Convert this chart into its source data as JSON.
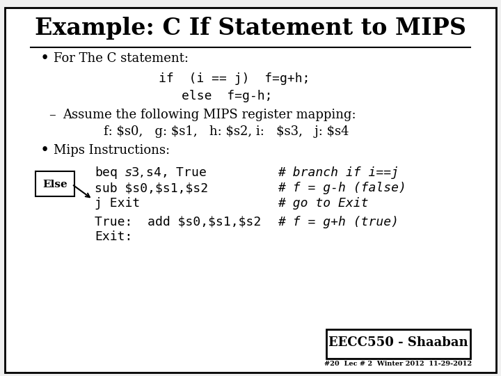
{
  "title": "Example: C If Statement to MIPS",
  "bg_color": "#f0f0f0",
  "slide_bg": "#ffffff",
  "border_color": "#000000",
  "title_fontsize": 24,
  "body_fontsize": 13,
  "code_fontsize": 13,
  "footer_text": "EECC550 - Shaaban",
  "footer_sub": "#20  Lec # 2  Winter 2012  11-29-2012",
  "bullet1": "For The C statement:",
  "code_line1": "if  (i == j)  f=g+h;",
  "code_line2": "else  f=g-h;",
  "sub_bullet": "Assume the following MIPS register mapping:",
  "mapping_line": "f: $s0,   g: $s1,   h: $s2, i:   $s3,   j: $s4",
  "bullet2": "Mips Instructions:",
  "instr1": "beq $s3,$s4, True",
  "instr2": "sub $s0,$s1,$s2",
  "instr3": "j Exit",
  "instr4": "True:  add $s0,$s1,$s2",
  "instr5": "Exit:",
  "comment1": "# branch if i==j",
  "comment2": "# f = g-h (false)",
  "comment3": "# go to Exit",
  "comment4": "# f = g+h (true)",
  "else_label": "Else"
}
